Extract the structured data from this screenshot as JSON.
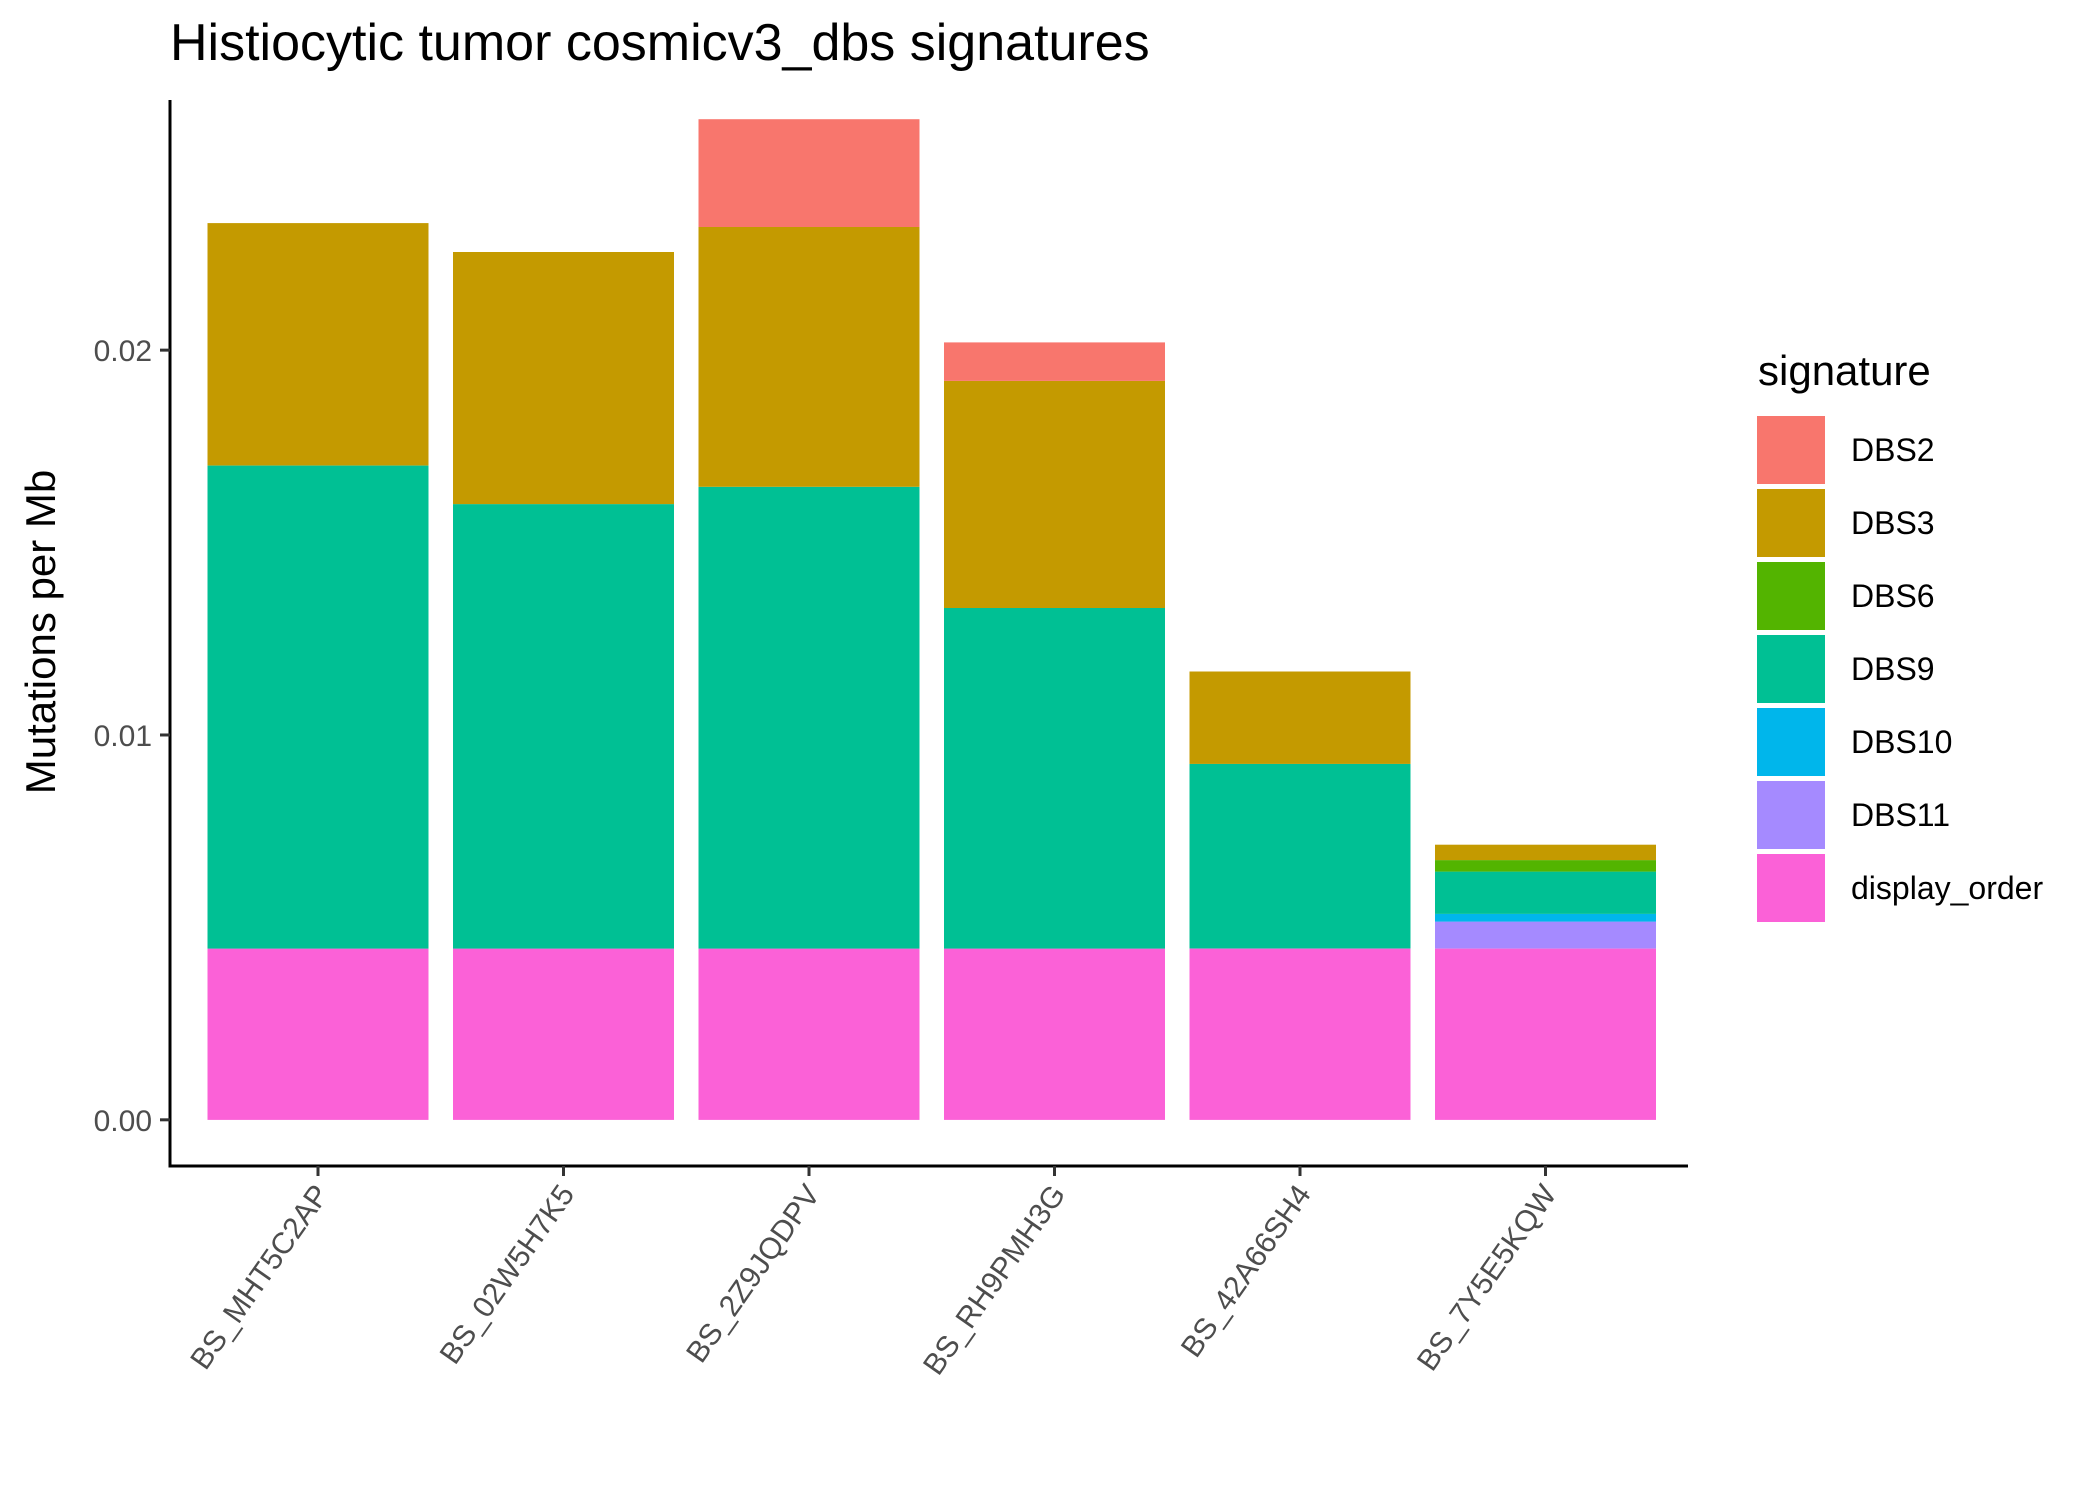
{
  "chart_data": {
    "type": "bar",
    "stacked": true,
    "title": "Histiocytic tumor cosmicv3_dbs signatures",
    "xlabel": "",
    "ylabel": "Mutations per Mb",
    "ylim": [
      -0.0012,
      0.0265
    ],
    "yticks": [
      0.0,
      0.01,
      0.02
    ],
    "ytick_labels": [
      "0.00",
      "0.01",
      "0.02"
    ],
    "grid": false,
    "legend_position": "right",
    "legend_title": "signature",
    "categories": [
      "BS_MHT5C2AP",
      "BS_02W5H7K5",
      "BS_2Z9JQDPV",
      "BS_RH9PMH3G",
      "BS_42A66SH4",
      "BS_7Y5E5KQW"
    ],
    "series": [
      {
        "name": "display_order",
        "color": "#FB61D7",
        "values": [
          0.00445,
          0.00445,
          0.00445,
          0.00445,
          0.00445,
          0.00445
        ]
      },
      {
        "name": "DBS11",
        "color": "#A58AFF",
        "values": [
          0,
          0,
          0,
          0,
          0,
          0.0007
        ]
      },
      {
        "name": "DBS10",
        "color": "#00B6EB",
        "values": [
          0,
          0,
          0,
          0,
          0,
          0.0002
        ]
      },
      {
        "name": "DBS9",
        "color": "#00C094",
        "values": [
          0.01255,
          0.01155,
          0.012,
          0.00885,
          0.0048,
          0.0011
        ]
      },
      {
        "name": "DBS6",
        "color": "#53B400",
        "values": [
          0,
          0,
          0,
          0,
          0,
          0.0003
        ]
      },
      {
        "name": "DBS3",
        "color": "#C49A00",
        "values": [
          0.0063,
          0.00655,
          0.00675,
          0.0059,
          0.0024,
          0.0004
        ]
      },
      {
        "name": "DBS2",
        "color": "#F8766D",
        "values": [
          0,
          0,
          0.0028,
          0.001,
          0,
          0
        ]
      }
    ],
    "legend_order": [
      "DBS2",
      "DBS3",
      "DBS6",
      "DBS9",
      "DBS10",
      "DBS11",
      "display_order"
    ]
  }
}
